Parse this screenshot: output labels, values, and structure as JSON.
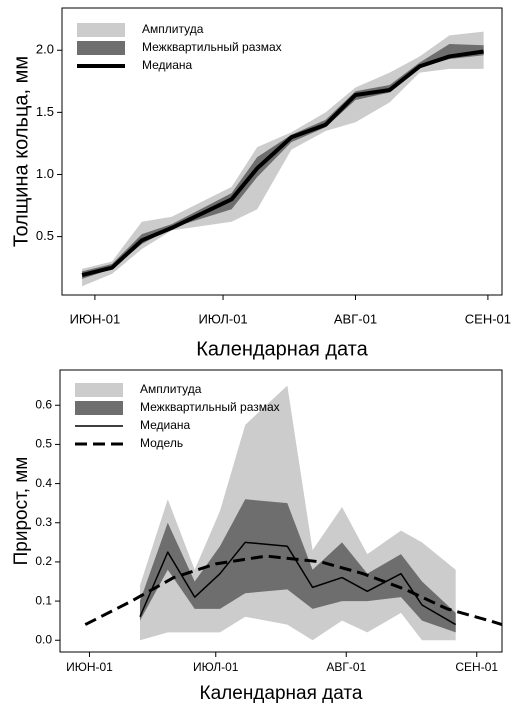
{
  "chart_data": [
    {
      "type": "band-line",
      "legend": "upper left",
      "x_label": "Календарная дата",
      "y_label": "Толщина кольца, мм",
      "x": [
        -3,
        4,
        11,
        18,
        32,
        38,
        46,
        54,
        61,
        69,
        76,
        83,
        91
      ],
      "series": [
        {
          "name": "Амплитуда",
          "kind": "band",
          "color": "#cccccc",
          "low": [
            0.1,
            0.2,
            0.4,
            0.55,
            0.62,
            0.72,
            1.2,
            1.35,
            1.42,
            1.58,
            1.82,
            1.85,
            1.85
          ],
          "high": [
            0.24,
            0.3,
            0.62,
            0.66,
            0.9,
            1.22,
            1.34,
            1.5,
            1.7,
            1.82,
            1.95,
            2.12,
            2.15
          ]
        },
        {
          "name": "Межквартильный размах",
          "kind": "band",
          "color": "#6e6e6e",
          "low": [
            0.16,
            0.24,
            0.44,
            0.57,
            0.72,
            0.98,
            1.26,
            1.38,
            1.6,
            1.66,
            1.86,
            1.93,
            1.96
          ],
          "high": [
            0.22,
            0.28,
            0.52,
            0.6,
            0.85,
            1.14,
            1.32,
            1.44,
            1.67,
            1.72,
            1.9,
            2.05,
            2.04
          ]
        },
        {
          "name": "Медиана",
          "kind": "line",
          "color": "#000000",
          "width": 4,
          "style": "solid",
          "values": [
            0.19,
            0.25,
            0.47,
            0.57,
            0.8,
            1.05,
            1.3,
            1.4,
            1.64,
            1.68,
            1.87,
            1.95,
            1.99
          ]
        }
      ],
      "xlim": [
        -7.7,
        95.3
      ],
      "ylim": [
        0.03,
        2.34
      ],
      "xticks": [
        {
          "value": 0,
          "label": "ИЮН-01"
        },
        {
          "value": 30,
          "label": "ИЮЛ-01"
        },
        {
          "value": 61,
          "label": "АВГ-01"
        },
        {
          "value": 92,
          "label": "СЕН-01"
        }
      ],
      "yticks": [
        0.5,
        {
          "value": 1.0,
          "label": "1.0"
        },
        1.5,
        {
          "value": 2.0,
          "label": "2.0"
        }
      ]
    },
    {
      "type": "band-line",
      "legend": "upper left",
      "x_label": "Календарная дата",
      "y_label": "Прирост, мм",
      "x": [
        12,
        18.6,
        25,
        31,
        37,
        47,
        53,
        60,
        66,
        74,
        79,
        87
      ],
      "series": [
        {
          "name": "Амплитуда",
          "kind": "band",
          "color": "#cccccc",
          "low": [
            0.0,
            0.02,
            0.02,
            0.02,
            0.06,
            0.04,
            0.0,
            0.05,
            0.02,
            0.07,
            0.0,
            0.0
          ],
          "high": [
            0.14,
            0.36,
            0.18,
            0.33,
            0.55,
            0.65,
            0.23,
            0.34,
            0.22,
            0.28,
            0.25,
            0.18
          ]
        },
        {
          "name": "Межквартильный размах",
          "kind": "band",
          "color": "#6e6e6e",
          "low": [
            0.05,
            0.18,
            0.08,
            0.08,
            0.12,
            0.13,
            0.08,
            0.1,
            0.1,
            0.11,
            0.05,
            0.02
          ],
          "high": [
            0.1,
            0.3,
            0.15,
            0.24,
            0.36,
            0.35,
            0.18,
            0.25,
            0.17,
            0.22,
            0.15,
            0.07
          ]
        },
        {
          "name": "Медиана",
          "kind": "line",
          "color": "#000000",
          "width": 1.5,
          "style": "solid",
          "values": [
            0.06,
            0.225,
            0.11,
            0.17,
            0.25,
            0.24,
            0.135,
            0.16,
            0.125,
            0.17,
            0.09,
            0.04
          ]
        },
        {
          "name": "Модель",
          "kind": "line",
          "color": "#000000",
          "width": 3,
          "style": "dashed",
          "x": [
            -1,
            10,
            20,
            30,
            42,
            55,
            65,
            75,
            85,
            95,
            98
          ],
          "values": [
            0.04,
            0.1,
            0.16,
            0.195,
            0.215,
            0.2,
            0.17,
            0.13,
            0.08,
            0.05,
            0.04
          ]
        }
      ],
      "xlim": [
        -7,
        98
      ],
      "ylim": [
        -0.03,
        0.69
      ],
      "xticks": [
        {
          "value": 0,
          "label": "ИЮН-01"
        },
        {
          "value": 30,
          "label": "ИЮЛ-01"
        },
        {
          "value": 61,
          "label": "АВГ-01"
        },
        {
          "value": 92,
          "label": "СЕН-01"
        }
      ],
      "yticks": [
        {
          "value": 0,
          "label": "0.0"
        },
        0.1,
        0.2,
        0.3,
        0.4,
        0.5,
        0.6
      ]
    }
  ]
}
